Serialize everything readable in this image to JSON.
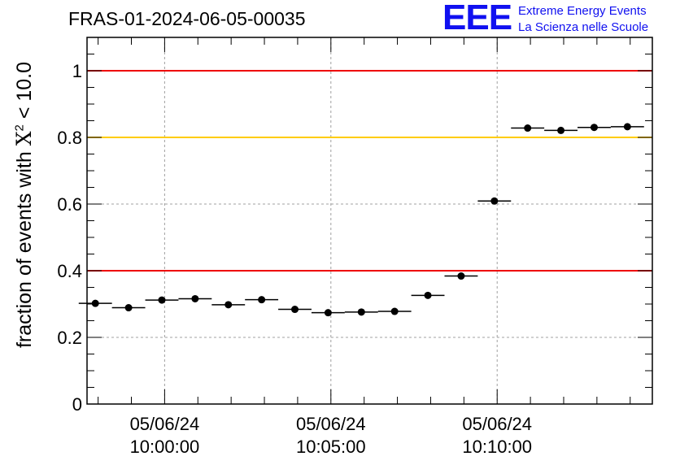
{
  "header": {
    "title": "FRAS-01-2024-06-05-00035",
    "logo_mark": "EEE",
    "logo_line1": "Extreme Energy Events",
    "logo_line2": "La Scienza nelle Scuole"
  },
  "chart_data": {
    "type": "scatter",
    "ylabel_prefix": "fraction of events with ",
    "ylabel_symbol": "X",
    "ylabel_exp": "2",
    "ylabel_suffix": " < 10.0",
    "ylim": [
      0,
      1.1
    ],
    "yticks": [
      0,
      0.2,
      0.4,
      0.6,
      0.8,
      1.0
    ],
    "ytick_labels": [
      "0",
      "0.2",
      "0.4",
      "0.6",
      "0.8",
      "1"
    ],
    "xticks": [
      {
        "date": "05/06/24",
        "time": "10:00:00"
      },
      {
        "date": "05/06/24",
        "time": "10:05:00"
      },
      {
        "date": "05/06/24",
        "time": "10:10:00"
      }
    ],
    "xlim": [
      "09:57:40",
      "10:14:40"
    ],
    "bin_width_s": 60,
    "grid": true,
    "thresholds": [
      {
        "value": 1.0,
        "color": "#ee0000"
      },
      {
        "value": 0.8,
        "color": "#ffcc00"
      },
      {
        "value": 0.4,
        "color": "#ee0000"
      }
    ],
    "series": [
      {
        "color": "#000000",
        "points": [
          {
            "x": "09:57:55",
            "y": 0.302
          },
          {
            "x": "09:58:55",
            "y": 0.289
          },
          {
            "x": "09:59:55",
            "y": 0.312
          },
          {
            "x": "10:00:55",
            "y": 0.316
          },
          {
            "x": "10:01:55",
            "y": 0.298
          },
          {
            "x": "10:02:55",
            "y": 0.313
          },
          {
            "x": "10:03:55",
            "y": 0.284
          },
          {
            "x": "10:04:55",
            "y": 0.274
          },
          {
            "x": "10:05:55",
            "y": 0.276
          },
          {
            "x": "10:06:55",
            "y": 0.278
          },
          {
            "x": "10:07:55",
            "y": 0.326
          },
          {
            "x": "10:08:55",
            "y": 0.384
          },
          {
            "x": "10:09:55",
            "y": 0.609
          },
          {
            "x": "10:10:55",
            "y": 0.828
          },
          {
            "x": "10:11:55",
            "y": 0.821
          },
          {
            "x": "10:12:55",
            "y": 0.83
          },
          {
            "x": "10:13:55",
            "y": 0.832
          }
        ]
      }
    ]
  }
}
